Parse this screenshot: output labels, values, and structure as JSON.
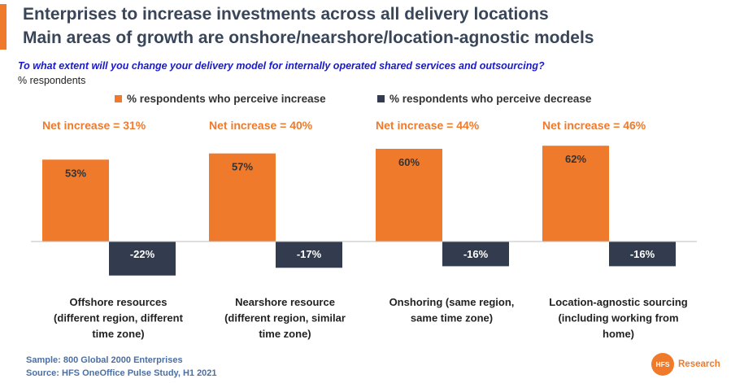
{
  "header": {
    "title_line1": "Enterprises to increase investments across all delivery locations",
    "title_line2": "Main areas of growth are onshore/nearshore/location-agnostic models",
    "question": "To what extent will you change your delivery model for internally operated shared services and outsourcing?",
    "unit": "% respondents"
  },
  "legend": {
    "increase": "% respondents who perceive increase",
    "decrease": "% respondents who perceive decrease"
  },
  "colors": {
    "increase": "#F07A2C",
    "decrease": "#323C4E",
    "net_label": "#F07A2C",
    "title": "#39465A",
    "question": "#1A1AC8",
    "footer": "#4A6FA5"
  },
  "chart_data": {
    "type": "bar",
    "categories": [
      [
        "Offshore resources",
        "(different region, different",
        "time zone)"
      ],
      [
        "Nearshore resource",
        "(different region, similar",
        "time zone)"
      ],
      [
        "Onshoring (same region,",
        "same time zone)"
      ],
      [
        "Location-agnostic sourcing",
        "(including working from",
        "home)"
      ]
    ],
    "series": [
      {
        "name": "% respondents who perceive increase",
        "values": [
          53,
          57,
          60,
          62
        ]
      },
      {
        "name": "% respondents who perceive decrease",
        "values": [
          -22,
          -17,
          -16,
          -16
        ]
      }
    ],
    "data_labels": {
      "increase": [
        "53%",
        "57%",
        "60%",
        "62%"
      ],
      "decrease": [
        "-22%",
        "-17%",
        "-16%",
        "-16%"
      ]
    },
    "annotations": [
      "Net increase = 31%",
      "Net increase = 40%",
      "Net increase = 44%",
      "Net increase = 46%"
    ],
    "ylim": [
      -22,
      62
    ],
    "grid": false,
    "legend_position": "top"
  },
  "footer": {
    "sample": "Sample: 800 Global 2000 Enterprises",
    "source": "Source:  HFS OneOffice Pulse Study, H1 2021"
  },
  "logo": {
    "mark": "HFS",
    "text": "Research"
  }
}
